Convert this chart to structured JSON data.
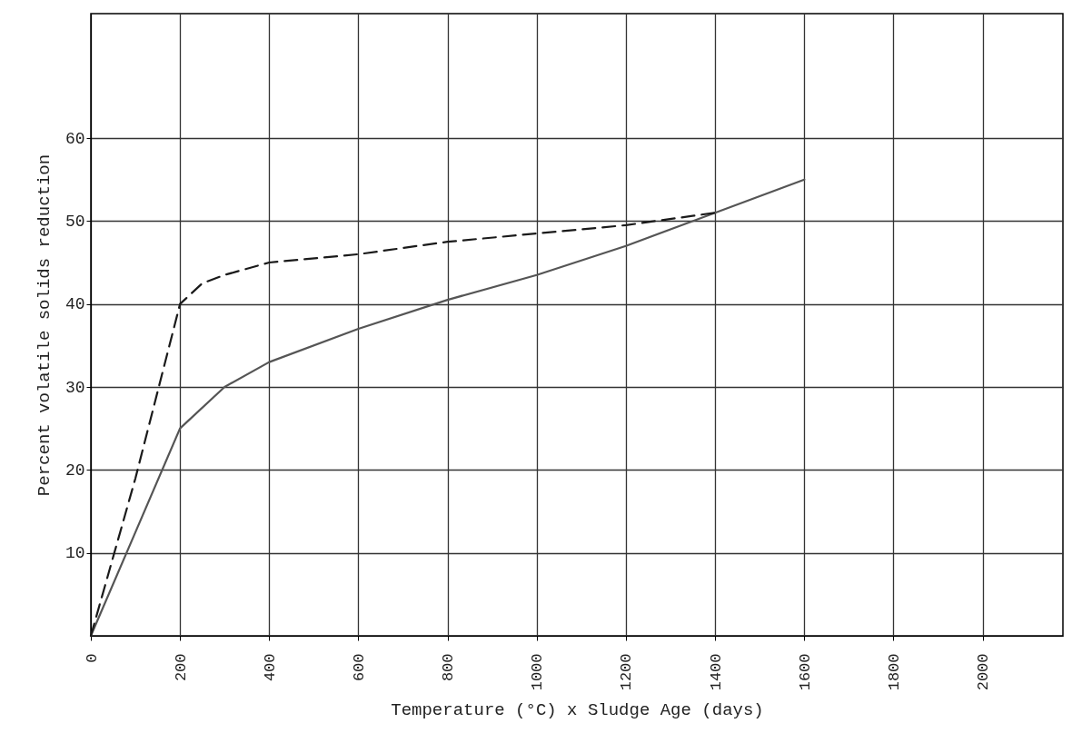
{
  "chart_data": {
    "type": "line",
    "xlabel": "Temperature (°C) x Sludge Age (days)",
    "ylabel": "Percent volatile solids reduction",
    "x": [
      0,
      100,
      200,
      300,
      400,
      600,
      800,
      1000,
      1200,
      1400,
      1600
    ],
    "series": [
      {
        "color": "#555555",
        "line_style": "solid",
        "values": [
          0,
          12.5,
          25,
          30,
          33,
          37,
          40.5,
          43.5,
          47,
          51,
          55
        ]
      },
      {
        "color": "#1a1a1a",
        "line_style": "dashed",
        "x": [
          0,
          100,
          200,
          250,
          300,
          400,
          600,
          800,
          1000,
          1200,
          1400
        ],
        "values": [
          0,
          19,
          40,
          42.5,
          43.5,
          45,
          46,
          47.5,
          48.5,
          49.5,
          51
        ]
      }
    ],
    "xlim": [
      0,
      2180
    ],
    "ylim": [
      0,
      75
    ],
    "xticks": [
      0,
      200,
      400,
      600,
      800,
      1000,
      1200,
      1400,
      1600,
      1800,
      2000
    ],
    "yticks": [
      10,
      20,
      30,
      40,
      50,
      60
    ],
    "grid": true,
    "marker": "none"
  }
}
